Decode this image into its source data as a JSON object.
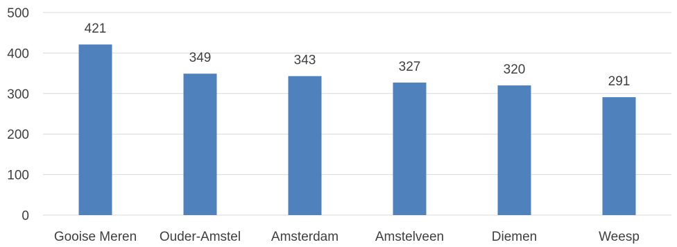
{
  "chart_data": {
    "type": "bar",
    "categories": [
      "Gooise Meren",
      "Ouder-Amstel",
      "Amsterdam",
      "Amstelveen",
      "Diemen",
      "Weesp"
    ],
    "values": [
      421,
      349,
      343,
      327,
      320,
      291
    ],
    "data_labels": [
      "421",
      "349",
      "343",
      "327",
      "320",
      "291"
    ],
    "ylim": [
      0,
      500
    ],
    "yticks": [
      0,
      100,
      200,
      300,
      400,
      500
    ],
    "grid": true,
    "legend": "none",
    "colors": {
      "bar": "#4f81bd",
      "grid": "#d9d9d9",
      "text": "#3f3f3f",
      "background": "#ffffff"
    }
  }
}
